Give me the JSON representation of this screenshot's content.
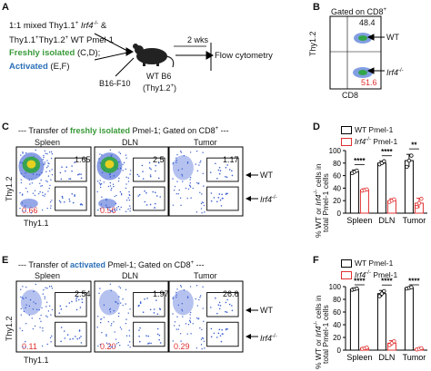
{
  "panels": {
    "A": {
      "letter": "A",
      "line1_prefix": "1:1 mixed Thy1.1",
      "line1_sup": "+",
      "line1_gene": "Irf4",
      "line1_gene_sup": "-/-",
      "line1_amp": " &",
      "line2": "Thy1.1",
      "line2_sup1": "+",
      "line2_mid": "Thy1.2",
      "line2_sup2": "+",
      "line2_tail": " WT Pmel-1",
      "freshly": "Freshly isolated",
      "freshly_tail": " (C,D);",
      "activated": "Activated",
      "activated_tail": " (E,F)",
      "b16": "B16-F10",
      "duration": "2 wks",
      "host_line1": "WT B6",
      "host_line2": "(Thy1.2",
      "host_line2_sup": "+",
      "host_line2_close": ")",
      "readout": "Flow cytometry"
    },
    "B": {
      "letter": "B",
      "gated": "Gated on CD8",
      "gated_sup": "+",
      "top_value": "48.4",
      "bottom_value": "51.6",
      "wt_label": "WT",
      "ko_label": "Irf4",
      "ko_sup": "-/-",
      "ylabel": "Thy1.2",
      "xlabel": "CD8"
    },
    "C": {
      "letter": "C",
      "title_pre": "--- Transfer of ",
      "title_hl": "freshly isolated",
      "title_post": " Pmel-1; Gated on CD8",
      "title_sup": "+",
      "title_end": " ---",
      "cols": [
        "Spleen",
        "DLN",
        "Tumor"
      ],
      "top_values": [
        "1.65",
        "2.5",
        "1.17"
      ],
      "bottom_values": [
        "0.66",
        "0.56",
        ""
      ],
      "wt_label": "WT",
      "ko_label": "Irf4",
      "ko_sup": "-/-",
      "ylabel": "Thy1.2",
      "xlabel": "Thy1.1"
    },
    "D": {
      "letter": "D",
      "legend": [
        {
          "name": "WT Pmel-1",
          "color": "#000000"
        },
        {
          "name": "Irf4",
          "sup": "-/-",
          "tail": " Pmel-1",
          "color": "#e03030"
        }
      ],
      "ylabel_parts": [
        "% WT or ",
        "Irf4",
        "-/-",
        " cells in"
      ],
      "ylabel2": "total Pmel-1 cells"
    },
    "E": {
      "letter": "E",
      "title_pre": "--- Transfer of ",
      "title_hl": "activated",
      "title_post": " Pmel-1; Gated on CD8",
      "title_sup": "+",
      "title_end": " ---",
      "cols": [
        "Spleen",
        "DLN",
        "Tumor"
      ],
      "top_values": [
        "2.54",
        "1.97",
        "26.6"
      ],
      "bottom_values": [
        "0.11",
        "0.20",
        "0.29"
      ],
      "wt_label": "WT",
      "ko_label": "Irf4",
      "ko_sup": "-/-",
      "ylabel": "Thy1.2",
      "xlabel": "Thy1.1"
    },
    "F": {
      "letter": "F",
      "legend": [
        {
          "name": "WT Pmel-1",
          "color": "#000000"
        },
        {
          "name": "Irf4",
          "sup": "-/-",
          "tail": " Pmel-1",
          "color": "#e03030"
        }
      ],
      "ylabel_parts": [
        "% WT or ",
        "Irf4",
        "-/-",
        " cells in"
      ],
      "ylabel2": "total Pmel-1 cells"
    }
  },
  "colors": {
    "wt": "#000000",
    "ko": "#e03030",
    "freshly": "#3a9a3a",
    "activated": "#2a6fb8"
  },
  "chart_data": [
    {
      "panel": "D",
      "type": "bar",
      "categories": [
        "Spleen",
        "DLN",
        "Tumor"
      ],
      "ylim": [
        0,
        100
      ],
      "yticks": [
        0,
        20,
        40,
        60,
        80,
        100
      ],
      "series": [
        {
          "name": "WT Pmel-1",
          "values": [
            66,
            80,
            84
          ],
          "errors": [
            3,
            3,
            10
          ],
          "points": [
            [
              64,
              66,
              68
            ],
            [
              78,
              80,
              83
            ],
            [
              74,
              84,
              92
            ]
          ]
        },
        {
          "name": "Irf4-/- Pmel-1",
          "values": [
            37,
            20,
            16
          ],
          "errors": [
            2,
            3,
            8
          ],
          "points": [
            [
              36,
              37,
              38
            ],
            [
              18,
              20,
              22
            ],
            [
              10,
              16,
              23
            ]
          ]
        }
      ],
      "significance": [
        "****",
        "****",
        "**"
      ]
    },
    {
      "panel": "F",
      "type": "bar",
      "categories": [
        "Spleen",
        "DLN",
        "Tumor"
      ],
      "ylim": [
        0,
        100
      ],
      "yticks": [
        0,
        20,
        40,
        60,
        80,
        100
      ],
      "series": [
        {
          "name": "WT Pmel-1",
          "values": [
            96,
            89,
            98
          ],
          "errors": [
            2,
            5,
            1
          ],
          "points": [
            [
              95,
              96,
              97
            ],
            [
              85,
              89,
              93
            ],
            [
              97,
              98,
              99
            ]
          ]
        },
        {
          "name": "Irf4-/- Pmel-1",
          "values": [
            3,
            11,
            2
          ],
          "errors": [
            1,
            4,
            1
          ],
          "points": [
            [
              2,
              3,
              4
            ],
            [
              8,
              11,
              14
            ],
            [
              1,
              2,
              3
            ]
          ]
        }
      ],
      "significance": [
        "****",
        "****",
        "****"
      ]
    }
  ]
}
